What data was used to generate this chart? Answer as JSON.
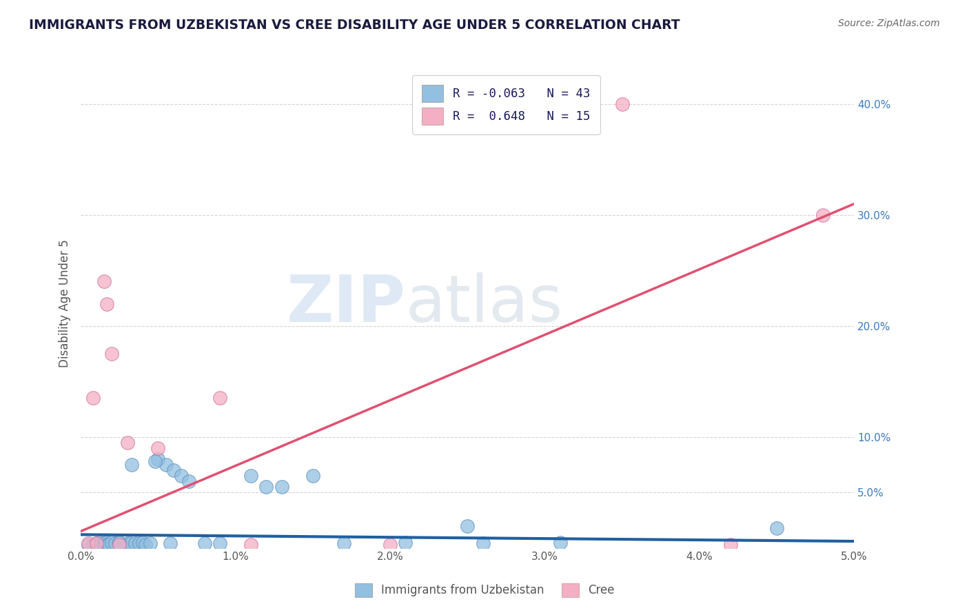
{
  "title": "IMMIGRANTS FROM UZBEKISTAN VS CREE DISABILITY AGE UNDER 5 CORRELATION CHART",
  "source": "Source: ZipAtlas.com",
  "ylabel": "Disability Age Under 5",
  "xlim": [
    0.0,
    5.0
  ],
  "ylim": [
    0.0,
    44.0
  ],
  "yticks_right": [
    5.0,
    10.0,
    20.0,
    30.0,
    40.0
  ],
  "ytick_labels_right": [
    "5.0%",
    "10.0%",
    "20.0%",
    "30.0%",
    "40.0%"
  ],
  "xtick_vals": [
    0.0,
    1.0,
    2.0,
    3.0,
    4.0,
    5.0
  ],
  "xtick_labels": [
    "0.0%",
    "1.0%",
    "2.0%",
    "3.0%",
    "4.0%",
    "5.0%"
  ],
  "legend_r1": "R = -0.063",
  "legend_n1": "N = 43",
  "legend_r2": "R =  0.648",
  "legend_n2": "N = 15",
  "color_blue": "#92c0e0",
  "color_pink": "#f4afc4",
  "line_blue": "#2060a0",
  "line_pink": "#e05070",
  "title_color": "#1a1a3e",
  "source_color": "#666666",
  "background_color": "#ffffff",
  "watermark_zip": "ZIP",
  "watermark_atlas": "atlas",
  "blue_scatter_x": [
    0.05,
    0.08,
    0.1,
    0.1,
    0.12,
    0.13,
    0.15,
    0.15,
    0.16,
    0.17,
    0.18,
    0.2,
    0.22,
    0.25,
    0.28,
    0.3,
    0.32,
    0.33,
    0.35,
    0.38,
    0.4,
    0.42,
    0.45,
    0.5,
    0.55,
    0.6,
    0.65,
    0.7,
    0.8,
    0.9,
    1.1,
    1.2,
    1.3,
    1.5,
    1.7,
    2.5,
    2.6,
    3.1,
    4.5,
    0.25,
    0.48,
    0.58,
    2.1
  ],
  "blue_scatter_y": [
    0.3,
    0.2,
    0.4,
    0.3,
    0.5,
    0.3,
    0.4,
    0.3,
    0.5,
    0.3,
    0.3,
    0.5,
    0.4,
    0.5,
    0.3,
    0.4,
    0.4,
    7.5,
    0.4,
    0.4,
    0.5,
    0.3,
    0.4,
    8.0,
    7.5,
    7.0,
    6.5,
    6.0,
    0.4,
    0.4,
    6.5,
    5.5,
    5.5,
    6.5,
    0.4,
    2.0,
    0.4,
    0.5,
    1.8,
    0.5,
    7.8,
    0.4,
    0.5
  ],
  "pink_scatter_x": [
    0.05,
    0.08,
    0.1,
    0.15,
    0.17,
    0.2,
    0.25,
    0.3,
    0.5,
    0.9,
    1.1,
    2.0,
    3.5,
    4.2,
    4.8
  ],
  "pink_scatter_y": [
    0.4,
    13.5,
    0.4,
    24.0,
    22.0,
    17.5,
    0.3,
    9.5,
    9.0,
    13.5,
    0.3,
    0.3,
    40.0,
    0.3,
    30.0
  ],
  "blue_trend_x": [
    0.0,
    5.0
  ],
  "blue_trend_y": [
    1.2,
    0.6
  ],
  "pink_trend_x": [
    0.0,
    5.0
  ],
  "pink_trend_y": [
    1.5,
    31.0
  ]
}
